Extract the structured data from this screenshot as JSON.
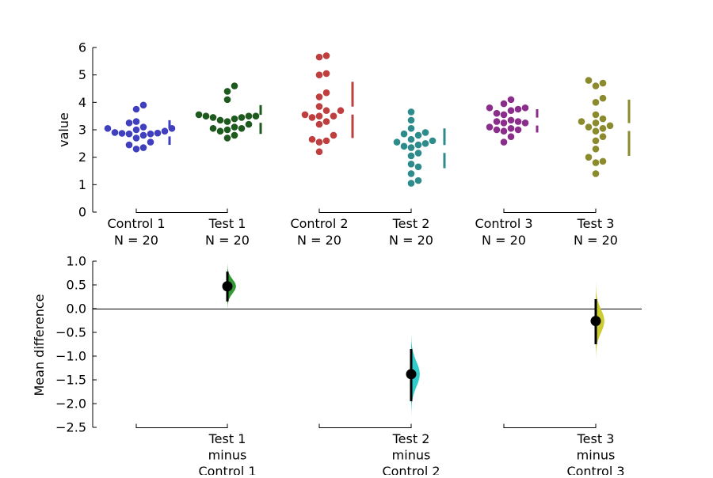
{
  "chart_data": [
    {
      "type": "scatter",
      "ylabel": "value",
      "ylim": [
        0,
        6
      ],
      "yticks": [
        "0",
        "1",
        "2",
        "3",
        "4",
        "5",
        "6"
      ],
      "groups": [
        {
          "label": "Control 1",
          "n_label": "N = 20",
          "color": "#3f3fbf",
          "values": [
            3.9,
            3.75,
            3.3,
            3.25,
            3.1,
            3.05,
            3.05,
            3.0,
            2.95,
            2.9,
            2.88,
            2.87,
            2.85,
            2.85,
            2.8,
            2.7,
            2.55,
            2.45,
            2.35,
            2.3
          ],
          "mean": 2.9,
          "sd_low": 2.45,
          "sd_high": 3.35
        },
        {
          "label": "Test 1",
          "n_label": "N = 20",
          "color": "#1e5a1e",
          "values": [
            4.6,
            4.4,
            4.1,
            3.55,
            3.5,
            3.5,
            3.5,
            3.45,
            3.45,
            3.4,
            3.35,
            3.3,
            3.2,
            3.1,
            3.05,
            3.05,
            3.0,
            2.95,
            2.8,
            2.7
          ],
          "mean": 3.4,
          "sd_low": 2.85,
          "sd_high": 3.9
        },
        {
          "label": "Control 2",
          "n_label": "N = 20",
          "color": "#bf3f3f",
          "values": [
            5.7,
            5.65,
            5.05,
            5.0,
            4.35,
            4.2,
            3.85,
            3.7,
            3.7,
            3.55,
            3.5,
            3.5,
            3.45,
            3.3,
            3.2,
            2.8,
            2.65,
            2.6,
            2.55,
            2.2
          ],
          "mean": 3.7,
          "sd_low": 2.7,
          "sd_high": 4.75
        },
        {
          "label": "Test 2",
          "n_label": "N = 20",
          "color": "#2e8b8b",
          "values": [
            3.65,
            3.35,
            3.05,
            2.9,
            2.85,
            2.8,
            2.65,
            2.6,
            2.55,
            2.5,
            2.45,
            2.4,
            2.35,
            2.15,
            2.05,
            1.75,
            1.65,
            1.4,
            1.15,
            1.05
          ],
          "mean": 2.3,
          "sd_low": 1.6,
          "sd_high": 3.05
        },
        {
          "label": "Control 3",
          "n_label": "N = 20",
          "color": "#8b2e8b",
          "values": [
            4.1,
            3.95,
            3.8,
            3.8,
            3.75,
            3.7,
            3.6,
            3.55,
            3.35,
            3.3,
            3.3,
            3.25,
            3.25,
            3.1,
            3.05,
            3.0,
            3.0,
            2.95,
            2.75,
            2.55
          ],
          "mean": 3.3,
          "sd_low": 2.9,
          "sd_high": 3.75
        },
        {
          "label": "Test 3",
          "n_label": "N = 20",
          "color": "#8b8b2e",
          "values": [
            4.8,
            4.7,
            4.6,
            4.15,
            4.0,
            3.55,
            3.4,
            3.3,
            3.25,
            3.15,
            3.1,
            3.05,
            2.95,
            2.75,
            2.6,
            2.3,
            2.0,
            1.85,
            1.8,
            1.4
          ],
          "mean": 3.1,
          "sd_low": 2.05,
          "sd_high": 4.1
        }
      ]
    },
    {
      "type": "scatter",
      "ylabel": "Mean difference",
      "ylim": [
        -2.5,
        1.0
      ],
      "yticks": [
        "1.0",
        "0.5",
        "0.0",
        "−0.5",
        "−1.0",
        "−1.5",
        "−2.0",
        "−2.5"
      ],
      "ytick_values": [
        1.0,
        0.5,
        0.0,
        -0.5,
        -1.0,
        -1.5,
        -2.0,
        -2.5
      ],
      "comparisons": [
        {
          "label_line1": "Test 1",
          "label_line2": "minus",
          "label_line3": "Control 1",
          "color": "#339933",
          "mean_diff": 0.47,
          "ci_low": 0.15,
          "ci_high": 0.78,
          "dist_low": -0.05,
          "dist_high": 0.95,
          "dist_sd": 0.15,
          "dist_width": 0.18
        },
        {
          "label_line1": "Test 2",
          "label_line2": "minus",
          "label_line3": "Control 2",
          "color": "#33cccc",
          "mean_diff": -1.38,
          "ci_low": -1.95,
          "ci_high": -0.85,
          "dist_low": -2.25,
          "dist_high": -0.55,
          "dist_sd": 0.27,
          "dist_width": 0.18
        },
        {
          "label_line1": "Test 3",
          "label_line2": "minus",
          "label_line3": "Control 3",
          "color": "#cccc33",
          "mean_diff": -0.26,
          "ci_low": -0.75,
          "ci_high": 0.2,
          "dist_low": -1.05,
          "dist_high": 0.55,
          "dist_sd": 0.25,
          "dist_width": 0.18
        }
      ]
    }
  ]
}
